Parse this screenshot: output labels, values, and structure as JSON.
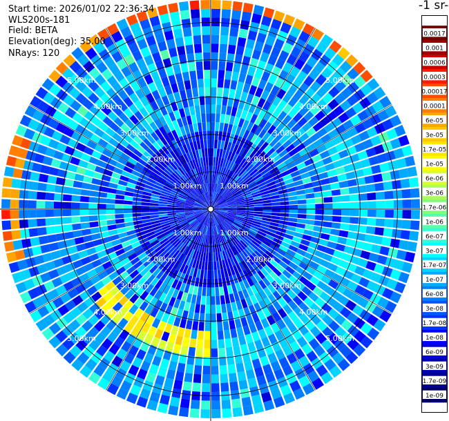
{
  "info": {
    "start_time": "Start time: 2026/01/02 22:36:34",
    "instrument": "WLS200s-181",
    "field": "Field: BETA",
    "elevation": "Elevation(deg): 35.00",
    "nrays": "NRays: 120"
  },
  "colorbar": {
    "unit_title": "-1 sr-",
    "ticks": [
      "0.0017",
      "0.001",
      "0.0006",
      "0.0003",
      "0.00017",
      "0.0001",
      "6e-05",
      "3e-05",
      "1.7e-05",
      "1e-05",
      "6e-06",
      "3e-06",
      "1.7e-06",
      "1e-06",
      "6e-07",
      "3e-07",
      "1.7e-07",
      "1e-07",
      "6e-08",
      "3e-08",
      "1.7e-08",
      "1e-08",
      "6e-09",
      "3e-09",
      "1.7e-09",
      "1e-09"
    ],
    "colors": [
      "#6e0000",
      "#9e0000",
      "#cc0000",
      "#ff1a00",
      "#ff4d00",
      "#ff7f00",
      "#ffa500",
      "#ffc800",
      "#ffe600",
      "#ffff00",
      "#d9ff33",
      "#aaff55",
      "#7fff7f",
      "#55ffaa",
      "#33ffd9",
      "#00ffff",
      "#00d4ff",
      "#00aaff",
      "#0080ff",
      "#0055ff",
      "#0033ff",
      "#0000ff",
      "#0000d9",
      "#0000b3",
      "#000090",
      "#000066"
    ]
  },
  "chart_data": {
    "type": "heatmap",
    "projection": "polar (PPI scan)",
    "field": "BETA",
    "elevation_deg": 35.0,
    "n_rays": 120,
    "range_labels_km": [
      "1.00km",
      "2.00km",
      "3.00km",
      "4.00km",
      "5.00km"
    ],
    "range_rings_km": [
      1,
      2,
      3,
      4,
      5
    ],
    "max_range_km": 5.6,
    "color_scale": "log",
    "value_range": [
      1e-09,
      0.0017
    ],
    "features": [
      {
        "description": "elevated backscatter arc",
        "azimuth_deg": [
          180,
          235
        ],
        "range_km": [
          3.2,
          4.0
        ],
        "beta": 1e-05
      },
      {
        "description": "high backscatter band near max range",
        "azimuth_deg": [
          310,
          50
        ],
        "range_km": [
          5.3,
          5.6
        ],
        "beta": 0.0001
      },
      {
        "description": "high backscatter patches at west edge",
        "azimuth_deg": [
          255,
          290
        ],
        "range_km": [
          5.2,
          5.6
        ],
        "beta": 0.0001
      },
      {
        "description": "moderate backscatter ring",
        "azimuth_deg": [
          60,
          170
        ],
        "range_km": [
          3.4,
          4.4
        ],
        "beta": 1.7e-07
      },
      {
        "description": "low backscatter core",
        "azimuth_deg": [
          0,
          360
        ],
        "range_km": [
          0,
          2.0
        ],
        "beta": 1e-08
      }
    ]
  }
}
